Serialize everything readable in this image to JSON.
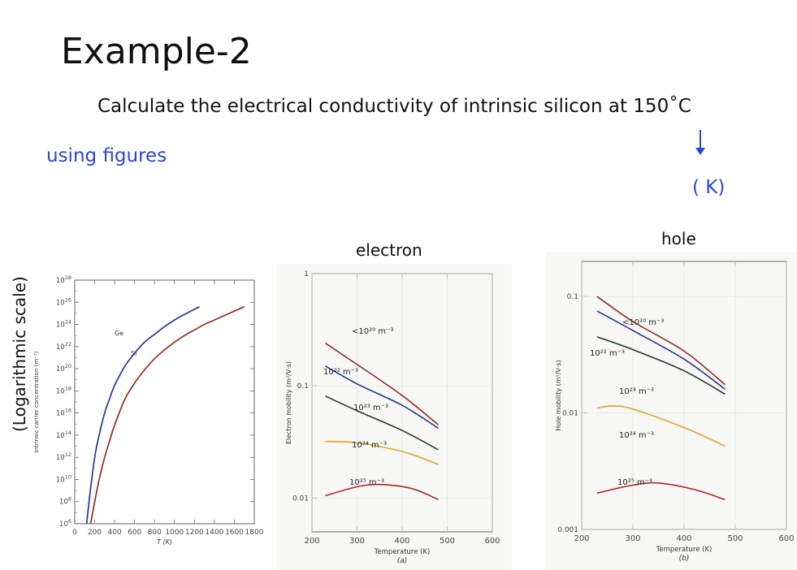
{
  "slide": {
    "title": "Example-2",
    "task": "Calculate the electrical conductivity of intrinsic silicon at 150˚C",
    "hint": "using figures",
    "kelvin_note": "( K)",
    "y_note": "(Logarithmic scale)",
    "label_electron": "electron",
    "label_hole": "hole",
    "accent": "#2b45d8"
  },
  "chart_data": [
    {
      "type": "line",
      "title": "",
      "xlabel": "T (K)",
      "ylabel": "Intrinsic carrier concentration (m⁻³)",
      "xlim": [
        0,
        1800
      ],
      "ylim_exp": [
        6,
        28
      ],
      "y_log": true,
      "x_ticks": [
        "0",
        "200",
        "400",
        "600",
        "800",
        "1000",
        "1200",
        "1400",
        "1600",
        "1800"
      ],
      "y_ticks": [
        "10^6",
        "10^8",
        "10^10",
        "10^12",
        "10^14",
        "10^16",
        "10^18",
        "10^20",
        "10^22",
        "10^24",
        "10^26",
        "10^28"
      ],
      "series": [
        {
          "name": "Ge",
          "color": "#23379c",
          "points": [
            [
              120,
              6
            ],
            [
              150,
              8.5
            ],
            [
              200,
              12
            ],
            [
              250,
              14.2
            ],
            [
              300,
              16
            ],
            [
              350,
              17.3
            ],
            [
              400,
              18.5
            ],
            [
              500,
              20.2
            ],
            [
              600,
              21.4
            ],
            [
              700,
              22.4
            ],
            [
              800,
              23.1
            ],
            [
              900,
              23.8
            ],
            [
              1000,
              24.4
            ],
            [
              1100,
              24.9
            ],
            [
              1250,
              25.6
            ]
          ]
        },
        {
          "name": "Si",
          "color": "#9a2a22",
          "points": [
            [
              160,
              6
            ],
            [
              200,
              8
            ],
            [
              250,
              10.2
            ],
            [
              300,
              12
            ],
            [
              350,
              13.5
            ],
            [
              400,
              14.9
            ],
            [
              500,
              17.2
            ],
            [
              600,
              18.7
            ],
            [
              700,
              19.9
            ],
            [
              800,
              20.9
            ],
            [
              900,
              21.7
            ],
            [
              1000,
              22.4
            ],
            [
              1100,
              23
            ],
            [
              1200,
              23.5
            ],
            [
              1300,
              24
            ],
            [
              1400,
              24.4
            ],
            [
              1500,
              24.8
            ],
            [
              1600,
              25.2
            ],
            [
              1700,
              25.6
            ]
          ]
        }
      ]
    },
    {
      "type": "line",
      "title": "",
      "xlabel": "Temperature (K)",
      "ylabel": "Electron mobility (m²/V·s)",
      "sublabel": "(a)",
      "xlim": [
        200,
        600
      ],
      "ylim": [
        0.005,
        1
      ],
      "y_log": true,
      "x_ticks": [
        "200",
        "300",
        "400",
        "500",
        "600"
      ],
      "y_ticks": [
        "1",
        "0.1",
        "0.01"
      ],
      "series": [
        {
          "name": "<10²⁰ m⁻³",
          "color": "#8e2a22",
          "points": [
            [
              230,
              0.24
            ],
            [
              300,
              0.155
            ],
            [
              400,
              0.082
            ],
            [
              480,
              0.045
            ]
          ]
        },
        {
          "name": "10²² m⁻³",
          "color": "#24368e",
          "points": [
            [
              230,
              0.15
            ],
            [
              300,
              0.104
            ],
            [
              400,
              0.067
            ],
            [
              480,
              0.042
            ]
          ]
        },
        {
          "name": "10²³ m⁻³",
          "color": "#1f3a2c",
          "points": [
            [
              230,
              0.081
            ],
            [
              300,
              0.06
            ],
            [
              400,
              0.04
            ],
            [
              480,
              0.027
            ]
          ]
        },
        {
          "name": "10²⁴ m⁻³",
          "color": "#e0a52a",
          "points": [
            [
              230,
              0.032
            ],
            [
              300,
              0.031
            ],
            [
              400,
              0.026
            ],
            [
              480,
              0.02
            ]
          ]
        },
        {
          "name": "10²⁵ m⁻³",
          "color": "#b0281e",
          "points": [
            [
              230,
              0.0105
            ],
            [
              300,
              0.0126
            ],
            [
              350,
              0.0132
            ],
            [
              420,
              0.0122
            ],
            [
              480,
              0.0097
            ]
          ]
        }
      ]
    },
    {
      "type": "line",
      "title": "",
      "xlabel": "Temperature (K)",
      "ylabel": "Hole mobility (m²/V·s)",
      "sublabel": "(b)",
      "xlim": [
        200,
        600
      ],
      "ylim": [
        0.001,
        0.2
      ],
      "y_log": true,
      "x_ticks": [
        "200",
        "300",
        "400",
        "500",
        "600"
      ],
      "y_ticks": [
        "0.1",
        "0.01",
        "0.001"
      ],
      "series": [
        {
          "name": "<10²⁰ m⁻³",
          "color": "#8e2a22",
          "points": [
            [
              230,
              0.1
            ],
            [
              300,
              0.061
            ],
            [
              400,
              0.034
            ],
            [
              480,
              0.0175
            ]
          ]
        },
        {
          "name": "10²² m⁻³",
          "color": "#24368e",
          "points": [
            [
              230,
              0.075
            ],
            [
              300,
              0.051
            ],
            [
              400,
              0.029
            ],
            [
              480,
              0.016
            ]
          ]
        },
        {
          "name": "10²³ m⁻³",
          "color": "#1f3a2c",
          "points": [
            [
              230,
              0.045
            ],
            [
              300,
              0.035
            ],
            [
              400,
              0.023
            ],
            [
              480,
              0.0145
            ]
          ]
        },
        {
          "name": "10²⁴ m⁻³",
          "color": "#e0a52a",
          "points": [
            [
              230,
              0.011
            ],
            [
              260,
              0.0115
            ],
            [
              300,
              0.0108
            ],
            [
              400,
              0.0075
            ],
            [
              480,
              0.0052
            ]
          ]
        },
        {
          "name": "10²⁵ m⁻³",
          "color": "#b0281e",
          "points": [
            [
              230,
              0.00205
            ],
            [
              300,
              0.0024
            ],
            [
              350,
              0.0025
            ],
            [
              420,
              0.0022
            ],
            [
              480,
              0.0018
            ]
          ]
        }
      ]
    }
  ]
}
